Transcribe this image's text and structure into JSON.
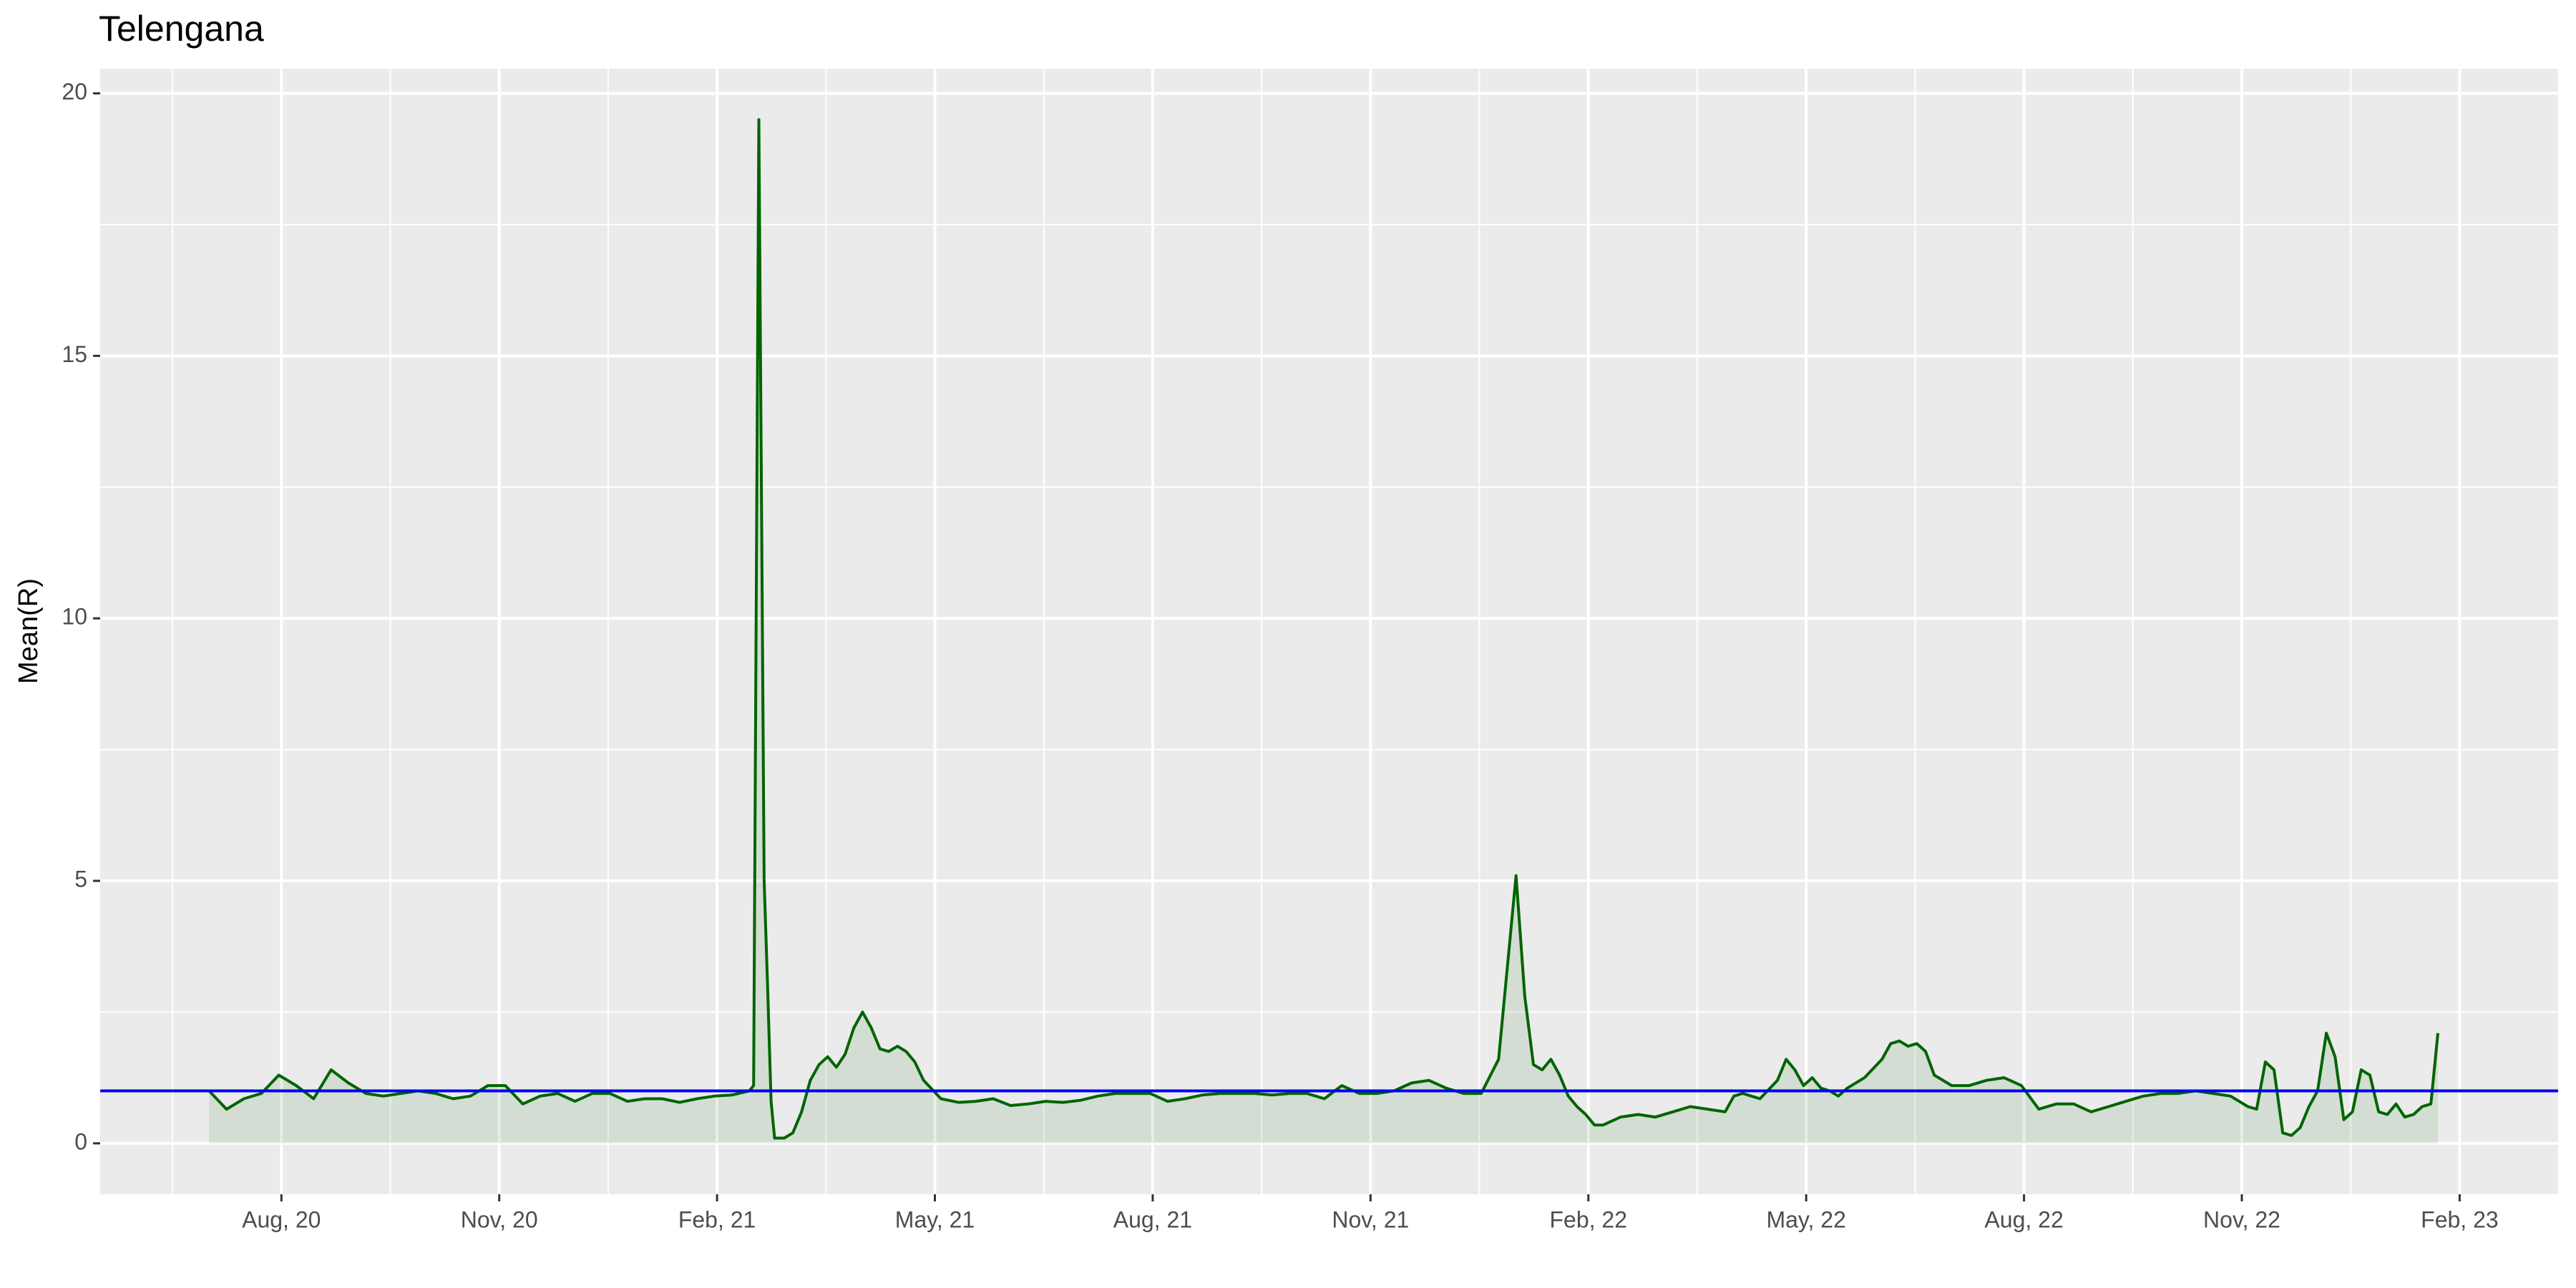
{
  "chart_data": {
    "type": "line",
    "title": "Telengana",
    "ylabel": "Mean(R)",
    "x": [
      2020.5,
      2020.52,
      2020.54,
      2020.56,
      2020.58,
      2020.6,
      2020.62,
      2020.64,
      2020.66,
      2020.68,
      2020.7,
      2020.72,
      2020.74,
      2020.76,
      2020.78,
      2020.8,
      2020.82,
      2020.84,
      2020.86,
      2020.88,
      2020.9,
      2020.92,
      2020.94,
      2020.96,
      2020.98,
      2021.0,
      2021.02,
      2021.04,
      2021.06,
      2021.08,
      2021.1,
      2021.12,
      2021.125,
      2021.131,
      2021.137,
      2021.141,
      2021.145,
      2021.149,
      2021.16,
      2021.17,
      2021.18,
      2021.19,
      2021.2,
      2021.21,
      2021.22,
      2021.23,
      2021.24,
      2021.25,
      2021.26,
      2021.27,
      2021.28,
      2021.29,
      2021.3,
      2021.31,
      2021.32,
      2021.34,
      2021.36,
      2021.38,
      2021.4,
      2021.42,
      2021.44,
      2021.46,
      2021.48,
      2021.5,
      2021.52,
      2021.54,
      2021.56,
      2021.58,
      2021.6,
      2021.62,
      2021.64,
      2021.66,
      2021.68,
      2021.7,
      2021.72,
      2021.74,
      2021.76,
      2021.78,
      2021.8,
      2021.82,
      2021.84,
      2021.86,
      2021.88,
      2021.9,
      2021.92,
      2021.94,
      2021.96,
      2021.98,
      2022.0,
      2022.01,
      2022.02,
      2022.03,
      2022.04,
      2022.05,
      2022.06,
      2022.07,
      2022.08,
      2022.09,
      2022.1,
      2022.12,
      2022.14,
      2022.16,
      2022.18,
      2022.2,
      2022.22,
      2022.24,
      2022.25,
      2022.26,
      2022.28,
      2022.3,
      2022.31,
      2022.32,
      2022.33,
      2022.34,
      2022.35,
      2022.36,
      2022.37,
      2022.38,
      2022.4,
      2022.42,
      2022.43,
      2022.44,
      2022.45,
      2022.46,
      2022.47,
      2022.48,
      2022.5,
      2022.52,
      2022.54,
      2022.56,
      2022.58,
      2022.6,
      2022.62,
      2022.64,
      2022.66,
      2022.68,
      2022.7,
      2022.72,
      2022.74,
      2022.76,
      2022.78,
      2022.8,
      2022.82,
      2022.84,
      2022.85,
      2022.86,
      2022.87,
      2022.88,
      2022.89,
      2022.9,
      2022.91,
      2022.92,
      2022.93,
      2022.94,
      2022.95,
      2022.96,
      2022.97,
      2022.98,
      2022.99,
      2023.0,
      2023.01,
      2023.02,
      2023.03,
      2023.04,
      2023.05,
      2023.058
    ],
    "series": [
      {
        "color": "#006400",
        "fill": "rgba(0,100,0,0.1)",
        "values": [
          1.0,
          0.65,
          0.85,
          0.95,
          1.3,
          1.1,
          0.85,
          1.4,
          1.15,
          0.95,
          0.9,
          0.95,
          1.0,
          0.95,
          0.85,
          0.9,
          1.1,
          1.1,
          0.75,
          0.9,
          0.95,
          0.8,
          0.95,
          0.95,
          0.8,
          0.85,
          0.85,
          0.78,
          0.85,
          0.9,
          0.92,
          1.0,
          1.1,
          19.5,
          5.0,
          3.0,
          0.8,
          0.1,
          0.1,
          0.2,
          0.6,
          1.2,
          1.5,
          1.65,
          1.45,
          1.7,
          2.2,
          2.5,
          2.2,
          1.8,
          1.75,
          1.85,
          1.75,
          1.55,
          1.2,
          0.85,
          0.78,
          0.8,
          0.85,
          0.72,
          0.75,
          0.8,
          0.78,
          0.82,
          0.9,
          0.95,
          0.95,
          0.95,
          0.8,
          0.85,
          0.92,
          0.95,
          0.95,
          0.95,
          0.92,
          0.95,
          0.95,
          0.85,
          1.1,
          0.95,
          0.95,
          1.0,
          1.15,
          1.2,
          1.05,
          0.95,
          0.95,
          1.6,
          5.1,
          2.8,
          1.5,
          1.4,
          1.6,
          1.3,
          0.9,
          0.7,
          0.55,
          0.35,
          0.35,
          0.5,
          0.55,
          0.5,
          0.6,
          0.7,
          0.65,
          0.6,
          0.9,
          0.95,
          0.85,
          1.2,
          1.6,
          1.4,
          1.1,
          1.25,
          1.05,
          1.0,
          0.9,
          1.05,
          1.25,
          1.6,
          1.9,
          1.95,
          1.85,
          1.9,
          1.75,
          1.3,
          1.1,
          1.1,
          1.2,
          1.25,
          1.1,
          0.65,
          0.75,
          0.75,
          0.6,
          0.7,
          0.8,
          0.9,
          0.95,
          0.95,
          1.0,
          0.95,
          0.9,
          0.7,
          0.65,
          1.55,
          1.4,
          0.2,
          0.15,
          0.3,
          0.7,
          1.0,
          2.1,
          1.65,
          0.45,
          0.6,
          1.4,
          1.3,
          0.6,
          0.55,
          0.75,
          0.5,
          0.55,
          0.7,
          0.75,
          2.1
        ]
      }
    ],
    "hline": {
      "value": 1,
      "color": "#0000ff"
    },
    "xlim": [
      2020.375,
      2023.196
    ],
    "xticks": [
      {
        "value": 2020.583,
        "label": "Aug, 20"
      },
      {
        "value": 2020.833,
        "label": "Nov, 20"
      },
      {
        "value": 2021.083,
        "label": "Feb, 21"
      },
      {
        "value": 2021.333,
        "label": "May, 21"
      },
      {
        "value": 2021.583,
        "label": "Aug, 21"
      },
      {
        "value": 2021.833,
        "label": "Nov, 21"
      },
      {
        "value": 2022.083,
        "label": "Feb, 22"
      },
      {
        "value": 2022.333,
        "label": "May, 22"
      },
      {
        "value": 2022.583,
        "label": "Aug, 22"
      },
      {
        "value": 2022.833,
        "label": "Nov, 22"
      },
      {
        "value": 2023.083,
        "label": "Feb, 23"
      }
    ],
    "xminorticks": [
      2020.458,
      2020.708,
      2020.958,
      2021.208,
      2021.458,
      2021.708,
      2021.958,
      2022.208,
      2022.458,
      2022.708,
      2022.958
    ],
    "ylim": [
      -0.97,
      20.47
    ],
    "yticks": [
      0,
      5,
      10,
      15,
      20
    ],
    "yminorticks": [
      2.5,
      7.5,
      12.5,
      17.5
    ],
    "grid": true
  }
}
